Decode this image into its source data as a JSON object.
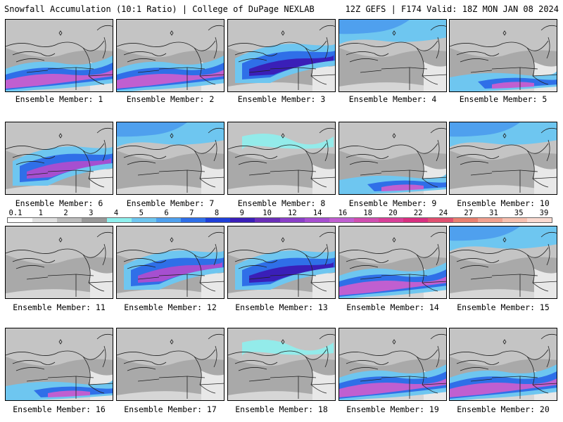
{
  "header": {
    "left_title": "Snowfall Accumulation (10:1 Ratio) | College of DuPage NEXLAB",
    "right_title": "12Z GEFS | F174 Valid: 18Z MON JAN 08 2024"
  },
  "colorbar": {
    "tick_labels": [
      "0.1",
      "1",
      "2",
      "3",
      "4",
      "5",
      "6",
      "7",
      "8",
      "9",
      "10",
      "12",
      "14",
      "16",
      "18",
      "20",
      "22",
      "24",
      "27",
      "31",
      "35",
      "39"
    ],
    "colors": [
      "#ffffff",
      "#e0e0e0",
      "#bdbdbd",
      "#999999",
      "#8ef0ee",
      "#6ec6f0",
      "#4fa0ee",
      "#2f6fe8",
      "#1f3fd8",
      "#3a1fb8",
      "#6a2fb8",
      "#8a3fc8",
      "#a64fd0",
      "#c05fd0",
      "#d04fb0",
      "#d84098",
      "#d83080",
      "#e05070",
      "#e88070",
      "#f0a090",
      "#f6c0b0",
      "#fadad0"
    ]
  },
  "members": [
    {
      "label": "Ensemble Member: 1",
      "band": "south-heavy"
    },
    {
      "label": "Ensemble Member: 2",
      "band": "south-heavy"
    },
    {
      "label": "Ensemble Member: 3",
      "band": "central"
    },
    {
      "label": "Ensemble Member: 4",
      "band": "north-light"
    },
    {
      "label": "Ensemble Member: 5",
      "band": "south-light"
    },
    {
      "label": "Ensemble Member: 6",
      "band": "central-heavy"
    },
    {
      "label": "Ensemble Member: 7",
      "band": "north-light"
    },
    {
      "label": "Ensemble Member: 8",
      "band": "light"
    },
    {
      "label": "Ensemble Member: 9",
      "band": "south-light"
    },
    {
      "label": "Ensemble Member: 10",
      "band": "north-light"
    },
    {
      "label": "Ensemble Member: 11",
      "band": "none"
    },
    {
      "label": "Ensemble Member: 12",
      "band": "central-heavy"
    },
    {
      "label": "Ensemble Member: 13",
      "band": "central"
    },
    {
      "label": "Ensemble Member: 14",
      "band": "south-heavy"
    },
    {
      "label": "Ensemble Member: 15",
      "band": "north-light"
    },
    {
      "label": "Ensemble Member: 16",
      "band": "south-light"
    },
    {
      "label": "Ensemble Member: 17",
      "band": "none"
    },
    {
      "label": "Ensemble Member: 18",
      "band": "light"
    },
    {
      "label": "Ensemble Member: 19",
      "band": "south-heavy"
    },
    {
      "label": "Ensemble Member: 20",
      "band": "south-heavy"
    }
  ]
}
